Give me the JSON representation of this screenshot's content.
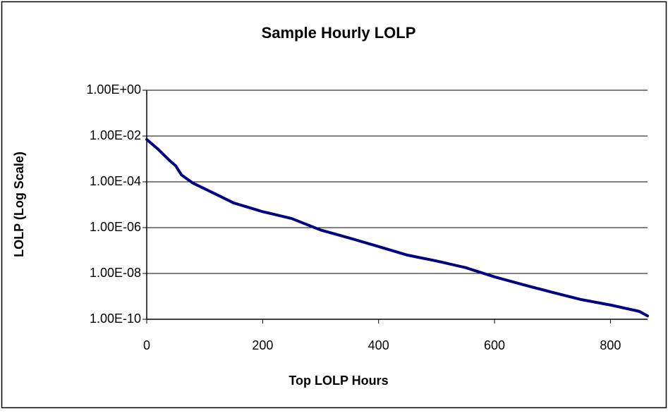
{
  "chart_data": {
    "type": "line",
    "title": "Sample Hourly LOLP",
    "x_label": "Top LOLP Hours",
    "y_label": "LOLP (Log Scale)",
    "y_scale": "log",
    "grid": true,
    "x": [
      0,
      20,
      40,
      50,
      60,
      80,
      100,
      150,
      200,
      250,
      300,
      350,
      400,
      450,
      500,
      550,
      600,
      650,
      700,
      750,
      800,
      850,
      864
    ],
    "series": [
      {
        "name": "LOLP",
        "color": "#000080",
        "values": [
          0.0071,
          0.0026,
          0.00083,
          0.0005,
          0.0002,
          8.7e-05,
          5e-05,
          1.2e-05,
          5e-06,
          2.5e-06,
          7.9e-07,
          3.5e-07,
          1.5e-07,
          6.3e-08,
          3.5e-08,
          1.8e-08,
          7.1e-09,
          3.2e-09,
          1.5e-09,
          7.2e-10,
          4.2e-10,
          2.2e-10,
          1.4e-10
        ]
      }
    ],
    "xlim": [
      0,
      864
    ],
    "xticks": [
      0,
      200,
      400,
      600,
      800
    ],
    "ylim": [
      1e-10,
      1
    ],
    "yticks": [
      {
        "value": 1,
        "label": "1.00E+00"
      },
      {
        "value": 0.01,
        "label": "1.00E-02"
      },
      {
        "value": 0.0001,
        "label": "1.00E-04"
      },
      {
        "value": 1e-06,
        "label": "1.00E-06"
      },
      {
        "value": 1e-08,
        "label": "1.00E-08"
      },
      {
        "value": 1e-10,
        "label": "1.00E-10"
      }
    ]
  }
}
